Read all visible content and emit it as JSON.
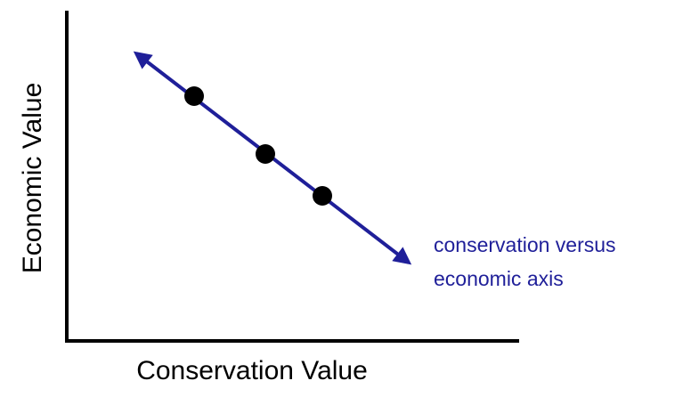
{
  "y_axis_label": "Economic Value",
  "x_axis_label": "Conservation Value",
  "annotation": {
    "lines": [
      "conservation versus",
      "economic axis"
    ]
  }
}
